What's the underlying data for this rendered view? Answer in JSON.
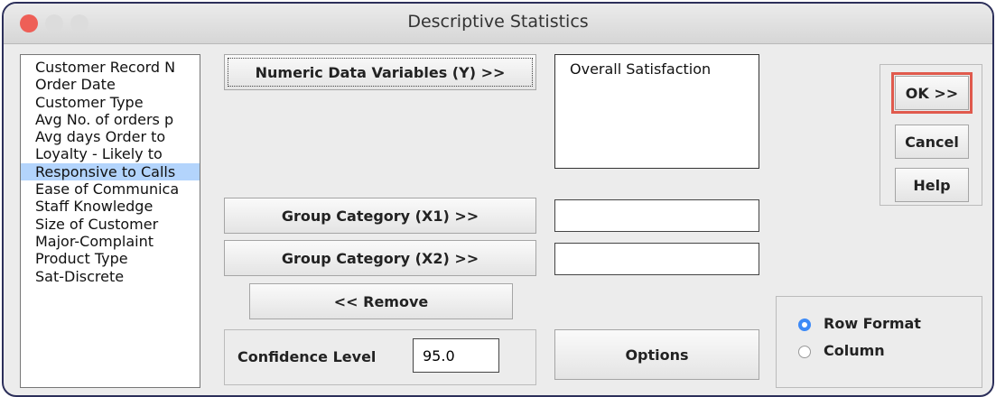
{
  "window": {
    "title": "Descriptive Statistics"
  },
  "variables": [
    {
      "label": "Customer Record N"
    },
    {
      "label": "Order Date"
    },
    {
      "label": "Customer Type"
    },
    {
      "label": "Avg No. of orders p"
    },
    {
      "label": "Avg days Order to"
    },
    {
      "label": "Loyalty - Likely to"
    },
    {
      "label": "Responsive to Calls",
      "selected": true
    },
    {
      "label": "Ease of Communica"
    },
    {
      "label": "Staff Knowledge"
    },
    {
      "label": "Size of Customer"
    },
    {
      "label": "Major-Complaint"
    },
    {
      "label": "Product Type"
    },
    {
      "label": "Sat-Discrete"
    }
  ],
  "numeric": {
    "button": "Numeric Data Variables (Y) >>",
    "items": [
      "Overall Satisfaction"
    ]
  },
  "group1": {
    "button": "Group Category (X1) >>",
    "value": ""
  },
  "group2": {
    "button": "Group Category (X2) >>",
    "value": ""
  },
  "remove": "<< Remove",
  "confidence": {
    "label": "Confidence Level",
    "value": "95.0"
  },
  "options": "Options",
  "actions": {
    "ok": "OK >>",
    "cancel": "Cancel",
    "help": "Help"
  },
  "format_options": [
    {
      "label": "Row Format",
      "selected": true
    },
    {
      "label": "Column",
      "selected": false
    }
  ]
}
